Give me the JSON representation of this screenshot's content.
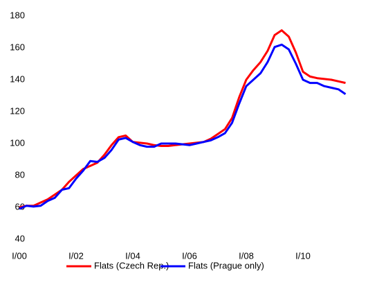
{
  "chart_data": {
    "type": "line",
    "categories": [
      "I/00",
      null,
      null,
      null,
      null,
      null,
      null,
      null,
      "I/02",
      null,
      null,
      null,
      null,
      null,
      null,
      null,
      "I/04",
      null,
      null,
      null,
      null,
      null,
      null,
      null,
      "I/06",
      null,
      null,
      null,
      null,
      null,
      null,
      null,
      "I/08",
      null,
      null,
      null,
      null,
      null,
      null,
      null,
      "I/10",
      null,
      null,
      null,
      null,
      null,
      null
    ],
    "series": [
      {
        "name": "Flats (Czech Rep.)",
        "color": "#ff0000",
        "values": [
          60,
          61,
          61,
          63,
          65,
          68,
          71,
          76,
          80,
          84,
          86,
          88,
          93,
          99,
          104,
          105,
          101,
          100.5,
          100,
          99,
          98.5,
          98.5,
          99,
          99.5,
          100,
          100.5,
          101,
          103,
          106,
          109,
          116,
          129,
          140,
          146,
          151,
          158,
          168,
          171,
          167,
          157,
          145,
          142,
          141,
          140.5,
          140,
          139,
          138
        ]
      },
      {
        "name": "Flats (Prague only)",
        "color": "#0000ff",
        "values": [
          59,
          61,
          60.5,
          61,
          64,
          66,
          71,
          72,
          78,
          83,
          89,
          88.5,
          91,
          96,
          102.5,
          103.5,
          101,
          99,
          98,
          98,
          100,
          100,
          100,
          99.5,
          99,
          100,
          101,
          102,
          104,
          106.5,
          113,
          125,
          136,
          140,
          144,
          151,
          160.5,
          162,
          159,
          150,
          140,
          138,
          138,
          136,
          135,
          134,
          131
        ]
      }
    ],
    "ylim": [
      40,
      180
    ],
    "yticks": [
      40,
      60,
      80,
      100,
      120,
      140,
      160,
      180
    ],
    "grid": false,
    "legend": "bottom"
  }
}
